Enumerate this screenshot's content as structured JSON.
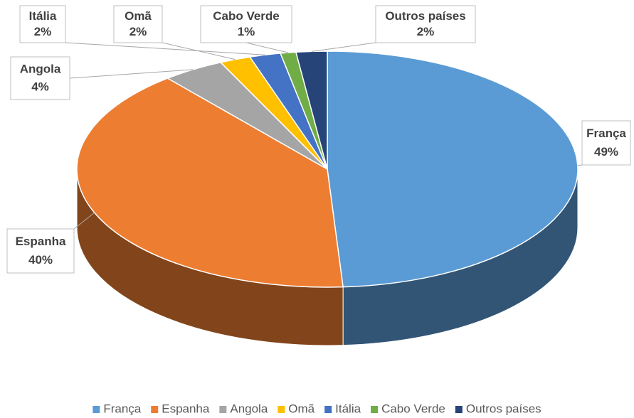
{
  "chart_data": {
    "type": "pie3d",
    "categories": [
      "França",
      "Espanha",
      "Angola",
      "Omã",
      "Itália",
      "Cabo Verde",
      "Outros países"
    ],
    "values": [
      49,
      40,
      4,
      2,
      2,
      1,
      2
    ],
    "value_labels": [
      "49%",
      "40%",
      "4%",
      "2%",
      "2%",
      "1%",
      "2%"
    ],
    "colors": [
      "#5b9bd5",
      "#ed7d31",
      "#a5a5a5",
      "#ffc000",
      "#4472c4",
      "#70ad47",
      "#264478"
    ],
    "legend": "bottom"
  }
}
